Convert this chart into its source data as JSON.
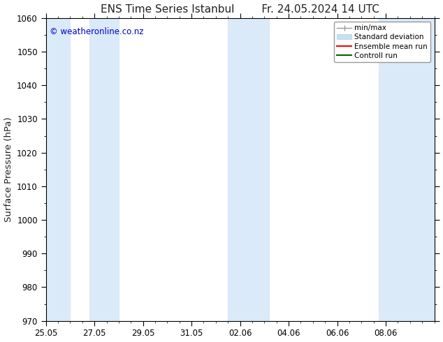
{
  "title": "ENS Time Series Istanbul",
  "title2": "Fr. 24.05.2024 14 UTC",
  "ylabel": "Surface Pressure (hPa)",
  "ylim": [
    970,
    1060
  ],
  "yticks": [
    970,
    980,
    990,
    1000,
    1010,
    1020,
    1030,
    1040,
    1050,
    1060
  ],
  "xlim": [
    0,
    16
  ],
  "xtick_labels": [
    "25.05",
    "27.05",
    "29.05",
    "31.05",
    "02.06",
    "04.06",
    "06.06",
    "08.06"
  ],
  "xtick_positions": [
    0,
    2,
    4,
    6,
    8,
    10,
    12,
    14
  ],
  "shaded_bands": [
    {
      "x_start": -0.1,
      "x_end": 1.0
    },
    {
      "x_start": 1.8,
      "x_end": 3.0
    },
    {
      "x_start": 7.5,
      "x_end": 9.2
    },
    {
      "x_start": 13.7,
      "x_end": 16.1
    }
  ],
  "shaded_color": "#daeaf8",
  "background_color": "#ffffff",
  "watermark_text": "© weatheronline.co.nz",
  "watermark_color": "#0000cc",
  "font_color": "#222222",
  "tick_font_size": 8.5,
  "label_font_size": 9.5,
  "title_font_size": 11
}
